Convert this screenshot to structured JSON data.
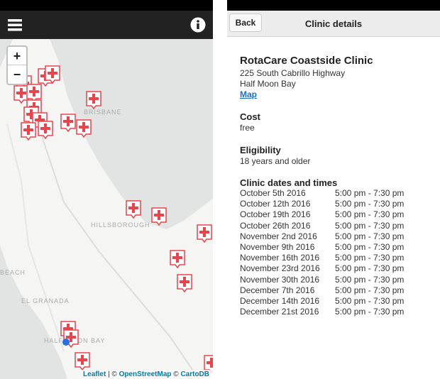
{
  "map": {
    "zoom": {
      "in": "+",
      "out": "−"
    },
    "places": [
      "BRISBANE",
      "HILLSBOROUGH",
      "BEACH",
      "EL GRANADA",
      "HALF MOON BAY"
    ],
    "attribution": {
      "leaflet": "Leaflet",
      "separator": "| ©",
      "osm": "OpenStreetMap",
      "copyright": "©",
      "cartodb": "CartoDB"
    }
  },
  "details": {
    "back": "Back",
    "title": "Clinic details",
    "name": "RotaCare Coastside Clinic",
    "address": [
      "225 South Cabrillo Highway",
      "Half Moon Bay"
    ],
    "map_link": "Map",
    "cost_label": "Cost",
    "cost": "free",
    "eligibility_label": "Eligibility",
    "eligibility": "18 years and older",
    "dates_label": "Clinic dates and times",
    "dates": [
      [
        "October 5th 2016",
        "5:00 pm - 7:30 pm"
      ],
      [
        "October 12th 2016",
        "5:00 pm - 7:30 pm"
      ],
      [
        "October 19th 2016",
        "5:00 pm - 7:30 pm"
      ],
      [
        "October 26th 2016",
        "5:00 pm - 7:30 pm"
      ],
      [
        "November 2nd 2016",
        "5:00 pm - 7:30 pm"
      ],
      [
        "November 9th 2016",
        "5:00 pm - 7:30 pm"
      ],
      [
        "November 16th 2016",
        "5:00 pm - 7:30 pm"
      ],
      [
        "November 23rd 2016",
        "5:00 pm - 7:30 pm"
      ],
      [
        "November 30th 2016",
        "5:00 pm - 7:30 pm"
      ],
      [
        "December 7th 2016",
        "5:00 pm - 7:30 pm"
      ],
      [
        "December 14th 2016",
        "5:00 pm - 7:30 pm"
      ],
      [
        "December 21st 2016",
        "5:00 pm - 7:30 pm"
      ]
    ]
  }
}
